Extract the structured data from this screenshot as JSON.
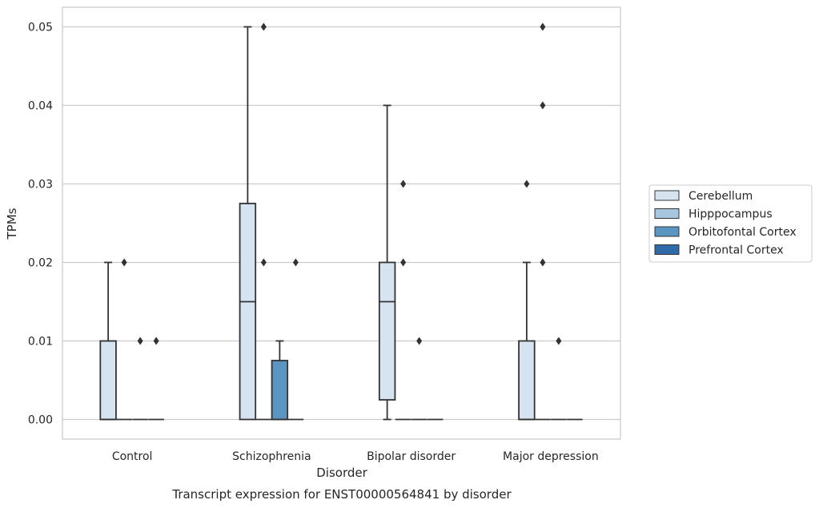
{
  "chart_data": {
    "type": "box",
    "title": "",
    "caption": "Transcript expression for ENST00000564841 by disorder",
    "xlabel": "Disorder",
    "ylabel": "TPMs",
    "ylim": [
      -0.0025,
      0.0525
    ],
    "yticks": [
      "0.00",
      "0.01",
      "0.02",
      "0.03",
      "0.04",
      "0.05"
    ],
    "ytick_values": [
      0.0,
      0.01,
      0.02,
      0.03,
      0.04,
      0.05
    ],
    "grid": true,
    "legend_position": "right",
    "categories": [
      "Control",
      "Schizophrenia",
      "Bipolar disorder",
      "Major depression"
    ],
    "series": [
      {
        "name": "Cerebellum",
        "color": "#d6e4f2",
        "boxes": [
          {
            "q1": 0.0,
            "median": 0.0,
            "q3": 0.01,
            "whisker_low": 0.0,
            "whisker_high": 0.02,
            "outliers": []
          },
          {
            "q1": 0.0,
            "median": 0.015,
            "q3": 0.0275,
            "whisker_low": 0.0,
            "whisker_high": 0.05,
            "outliers": []
          },
          {
            "q1": 0.0025,
            "median": 0.015,
            "q3": 0.02,
            "whisker_low": 0.0,
            "whisker_high": 0.04,
            "outliers": []
          },
          {
            "q1": 0.0,
            "median": 0.0,
            "q3": 0.01,
            "whisker_low": 0.0,
            "whisker_high": 0.02,
            "outliers": [
              0.03
            ]
          }
        ]
      },
      {
        "name": "Hipppocampus",
        "color": "#a7c7e0",
        "boxes": [
          {
            "q1": 0.0,
            "median": 0.0,
            "q3": 0.0,
            "whisker_low": 0.0,
            "whisker_high": 0.0,
            "outliers": [
              0.02
            ]
          },
          {
            "q1": 0.0,
            "median": 0.0,
            "q3": 0.0,
            "whisker_low": 0.0,
            "whisker_high": 0.0,
            "outliers": [
              0.05,
              0.02
            ]
          },
          {
            "q1": 0.0,
            "median": 0.0,
            "q3": 0.0,
            "whisker_low": 0.0,
            "whisker_high": 0.0,
            "outliers": [
              0.03,
              0.02
            ]
          },
          {
            "q1": 0.0,
            "median": 0.0,
            "q3": 0.0,
            "whisker_low": 0.0,
            "whisker_high": 0.0,
            "outliers": [
              0.05,
              0.04,
              0.02
            ]
          }
        ]
      },
      {
        "name": "Orbitofontal Cortex",
        "color": "#5a96c1",
        "boxes": [
          {
            "q1": 0.0,
            "median": 0.0,
            "q3": 0.0,
            "whisker_low": 0.0,
            "whisker_high": 0.0,
            "outliers": [
              0.01
            ]
          },
          {
            "q1": 0.0,
            "median": 0.0,
            "q3": 0.0075,
            "whisker_low": 0.0,
            "whisker_high": 0.01,
            "outliers": []
          },
          {
            "q1": 0.0,
            "median": 0.0,
            "q3": 0.0,
            "whisker_low": 0.0,
            "whisker_high": 0.0,
            "outliers": [
              0.01
            ]
          },
          {
            "q1": 0.0,
            "median": 0.0,
            "q3": 0.0,
            "whisker_low": 0.0,
            "whisker_high": 0.0,
            "outliers": [
              0.01
            ]
          }
        ]
      },
      {
        "name": "Prefrontal Cortex",
        "color": "#2e6ba8",
        "boxes": [
          {
            "q1": 0.0,
            "median": 0.0,
            "q3": 0.0,
            "whisker_low": 0.0,
            "whisker_high": 0.0,
            "outliers": [
              0.01
            ]
          },
          {
            "q1": 0.0,
            "median": 0.0,
            "q3": 0.0,
            "whisker_low": 0.0,
            "whisker_high": 0.0,
            "outliers": [
              0.02
            ]
          },
          {
            "q1": 0.0,
            "median": 0.0,
            "q3": 0.0,
            "whisker_low": 0.0,
            "whisker_high": 0.0,
            "outliers": []
          },
          {
            "q1": 0.0,
            "median": 0.0,
            "q3": 0.0,
            "whisker_low": 0.0,
            "whisker_high": 0.0,
            "outliers": []
          }
        ]
      }
    ]
  }
}
